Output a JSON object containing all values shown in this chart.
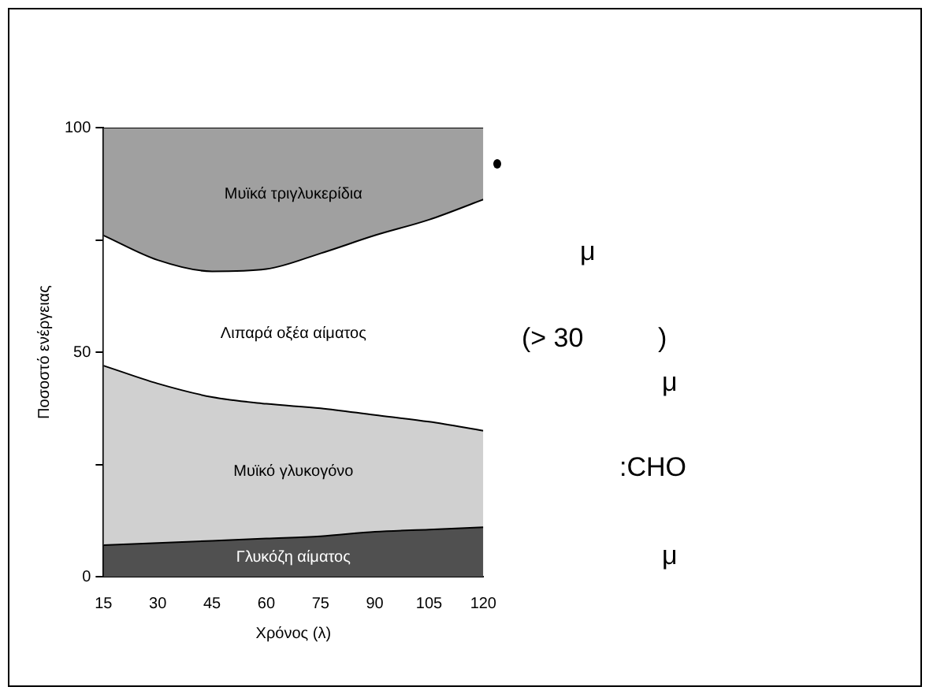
{
  "chart_data": {
    "type": "area",
    "stacked": true,
    "xlabel": "Χρόνος (λ)",
    "ylabel": "Ποσοστό ενέργειας",
    "x": [
      15,
      30,
      45,
      60,
      75,
      90,
      105,
      120
    ],
    "xlim": [
      15,
      120
    ],
    "xticks": [
      15,
      30,
      45,
      60,
      75,
      90,
      105,
      120
    ],
    "ylim": [
      0,
      100
    ],
    "yticks": [
      0,
      {
        "value": 25,
        "label": null
      },
      50,
      {
        "value": 75,
        "label": null
      },
      100
    ],
    "series": [
      {
        "name": "Γλυκόζη αίματος",
        "color": "#505050",
        "values": [
          7,
          7.5,
          8,
          8.5,
          9,
          10,
          10.5,
          11
        ]
      },
      {
        "name": "Μυϊκό γλυκογόνο",
        "color": "#d0d0d0",
        "values": [
          40,
          35.5,
          32,
          30,
          28.5,
          26,
          24,
          21.5
        ]
      },
      {
        "name": "Λιπαρά οξέα αίματος",
        "color": "#ffffff",
        "values": [
          29,
          27.5,
          28,
          30,
          34.5,
          40,
          45,
          51.5
        ]
      },
      {
        "name": "Μυϊκά τριγλυκερίδια",
        "color": "#a0a0a0",
        "values": [
          24,
          29.5,
          32,
          31.5,
          28,
          24,
          20.5,
          16
        ]
      }
    ],
    "annotations": [
      "μ",
      "(> 30          )",
      "μ",
      ":CHO",
      "μ"
    ],
    "grid": false,
    "legend": false
  }
}
